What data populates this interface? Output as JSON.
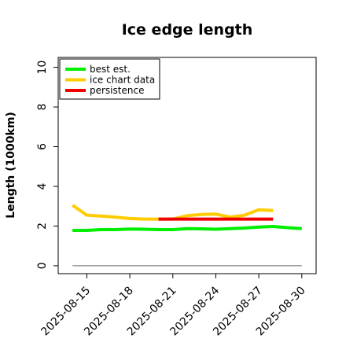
{
  "chart_data": {
    "type": "line",
    "title": "Ice edge length",
    "xlabel": "",
    "ylabel": "Length (1000km)",
    "ylim": [
      -0.4,
      10.5
    ],
    "xlim": [
      "2025-08-13",
      "2025-08-31"
    ],
    "yticks": [
      "0",
      "2",
      "4",
      "6",
      "8",
      "10"
    ],
    "xticks": [
      "2025-08-15",
      "2025-08-18",
      "2025-08-21",
      "2025-08-24",
      "2025-08-27",
      "2025-08-30"
    ],
    "legend_position": "top-left",
    "grid": false,
    "series": [
      {
        "name": "best est.",
        "color": "#00ee00",
        "x": [
          "2025-08-14",
          "2025-08-15",
          "2025-08-16",
          "2025-08-17",
          "2025-08-18",
          "2025-08-19",
          "2025-08-20",
          "2025-08-21",
          "2025-08-22",
          "2025-08-23",
          "2025-08-24",
          "2025-08-25",
          "2025-08-26",
          "2025-08-27",
          "2025-08-28",
          "2025-08-29",
          "2025-08-30"
        ],
        "y": [
          1.78,
          1.78,
          1.82,
          1.82,
          1.85,
          1.84,
          1.82,
          1.82,
          1.87,
          1.86,
          1.84,
          1.87,
          1.9,
          1.95,
          1.98,
          1.92,
          1.87
        ]
      },
      {
        "name": "ice chart data",
        "color": "#ffcc00",
        "x": [
          "2025-08-14",
          "2025-08-15",
          "2025-08-16",
          "2025-08-17",
          "2025-08-18",
          "2025-08-19",
          "2025-08-20",
          "2025-08-21",
          "2025-08-22",
          "2025-08-23",
          "2025-08-24",
          "2025-08-25",
          "2025-08-26",
          "2025-08-27",
          "2025-08-28"
        ],
        "y": [
          3.05,
          2.55,
          2.5,
          2.45,
          2.38,
          2.35,
          2.35,
          2.35,
          2.52,
          2.58,
          2.6,
          2.45,
          2.55,
          2.82,
          2.78
        ]
      },
      {
        "name": "persistence",
        "color": "#ee0000",
        "x": [
          "2025-08-20",
          "2025-08-28"
        ],
        "y": [
          2.35,
          2.35
        ]
      }
    ],
    "reference_line": {
      "y": 0,
      "color": "#808080",
      "x": [
        "2025-08-14",
        "2025-08-30"
      ]
    }
  }
}
